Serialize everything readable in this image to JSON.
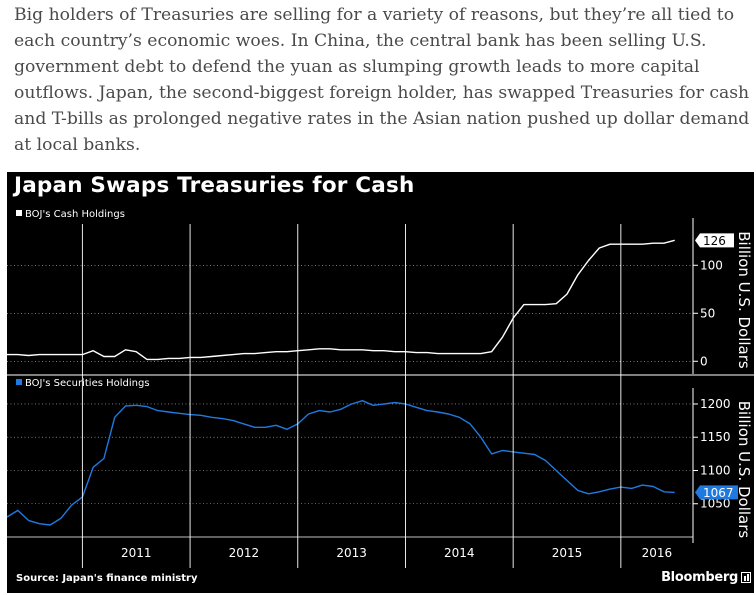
{
  "article": {
    "paragraph": "Big holders of Treasuries are selling for a variety of reasons, but they’re all tied to each country’s economic woes. In China, the central bank has been selling U.S. government debt to defend the yuan as slumping growth leads to more capital outflows. Japan, the second-biggest foreign holder, has swapped Treasuries for cash and T-bills as prolonged negative rates in the Asian nation pushed up dollar demand at local banks."
  },
  "chart": {
    "title": "Japan Swaps Treasuries for Cash",
    "source": "Source: Japan's finance ministry",
    "brand": "Bloomberg"
  },
  "colors": {
    "background": "#000000",
    "cash_line": "#ffffff",
    "securities_line": "#1f7ae0",
    "grid": "#ffffff"
  },
  "chart_data": [
    {
      "type": "line",
      "title": "",
      "series": [
        {
          "name": "BOJ's Cash Holdings",
          "color": "#ffffff",
          "x": [
            2010.3,
            2010.4,
            2010.5,
            2010.6,
            2010.7,
            2010.8,
            2010.9,
            2011.0,
            2011.1,
            2011.2,
            2011.3,
            2011.4,
            2011.5,
            2011.6,
            2011.7,
            2011.8,
            2011.9,
            2012.0,
            2012.1,
            2012.2,
            2012.3,
            2012.4,
            2012.5,
            2012.6,
            2012.7,
            2012.8,
            2012.9,
            2013.0,
            2013.1,
            2013.2,
            2013.3,
            2013.4,
            2013.5,
            2013.6,
            2013.7,
            2013.8,
            2013.9,
            2014.0,
            2014.1,
            2014.2,
            2014.3,
            2014.4,
            2014.5,
            2014.6,
            2014.7,
            2014.8,
            2014.9,
            2015.0,
            2015.1,
            2015.2,
            2015.3,
            2015.4,
            2015.5,
            2015.6,
            2015.7,
            2015.8,
            2015.9,
            2016.0,
            2016.1,
            2016.2,
            2016.3,
            2016.4,
            2016.5
          ],
          "values": [
            7,
            7,
            6,
            7,
            7,
            7,
            7,
            7,
            11,
            5,
            5,
            12,
            10,
            2,
            2,
            3,
            3,
            4,
            4,
            5,
            6,
            7,
            8,
            8,
            9,
            10,
            10,
            11,
            12,
            13,
            13,
            12,
            12,
            12,
            11,
            11,
            10,
            10,
            9,
            9,
            8,
            8,
            8,
            8,
            8,
            10,
            25,
            45,
            59,
            59,
            59,
            60,
            70,
            90,
            105,
            118,
            122,
            122,
            122,
            122,
            123,
            123,
            126
          ]
        }
      ],
      "ylabel": "Billion U.S. Dollars",
      "ylim": [
        -7,
        143
      ],
      "yticks": [
        0,
        50,
        100
      ],
      "last_value_label": "126",
      "legend": "top-left"
    },
    {
      "type": "line",
      "title": "",
      "series": [
        {
          "name": "BOJ's Securities Holdings",
          "color": "#1f7ae0",
          "x": [
            2010.3,
            2010.4,
            2010.5,
            2010.6,
            2010.7,
            2010.8,
            2010.9,
            2011.0,
            2011.1,
            2011.2,
            2011.3,
            2011.4,
            2011.5,
            2011.6,
            2011.7,
            2011.8,
            2011.9,
            2012.0,
            2012.1,
            2012.2,
            2012.3,
            2012.4,
            2012.5,
            2012.6,
            2012.7,
            2012.8,
            2012.9,
            2013.0,
            2013.1,
            2013.2,
            2013.3,
            2013.4,
            2013.5,
            2013.6,
            2013.7,
            2013.8,
            2013.9,
            2014.0,
            2014.1,
            2014.2,
            2014.3,
            2014.4,
            2014.5,
            2014.6,
            2014.7,
            2014.8,
            2014.9,
            2015.0,
            2015.1,
            2015.2,
            2015.3,
            2015.4,
            2015.5,
            2015.6,
            2015.7,
            2015.8,
            2015.9,
            2016.0,
            2016.1,
            2016.2,
            2016.3,
            2016.4,
            2016.5
          ],
          "values": [
            1030,
            1040,
            1025,
            1020,
            1018,
            1028,
            1048,
            1060,
            1105,
            1118,
            1180,
            1197,
            1198,
            1196,
            1190,
            1188,
            1186,
            1184,
            1183,
            1180,
            1178,
            1175,
            1170,
            1165,
            1165,
            1168,
            1162,
            1170,
            1185,
            1190,
            1188,
            1192,
            1200,
            1205,
            1198,
            1200,
            1202,
            1200,
            1195,
            1190,
            1188,
            1185,
            1180,
            1170,
            1150,
            1125,
            1130,
            1128,
            1126,
            1124,
            1115,
            1100,
            1085,
            1070,
            1065,
            1068,
            1072,
            1075,
            1073,
            1078,
            1076,
            1068,
            1067
          ]
        }
      ],
      "ylabel": "Billion U.S. Dollars",
      "ylim": [
        1000,
        1215
      ],
      "yticks": [
        1050,
        1100,
        1150,
        1200
      ],
      "last_value_label": "1067",
      "legend": "top-left"
    }
  ],
  "x_axis": {
    "range": [
      2010.3,
      2016.67
    ],
    "year_labels": [
      "2011",
      "2012",
      "2013",
      "2014",
      "2015",
      "2016"
    ],
    "year_boundaries": [
      2011,
      2012,
      2013,
      2014,
      2015,
      2016
    ]
  }
}
